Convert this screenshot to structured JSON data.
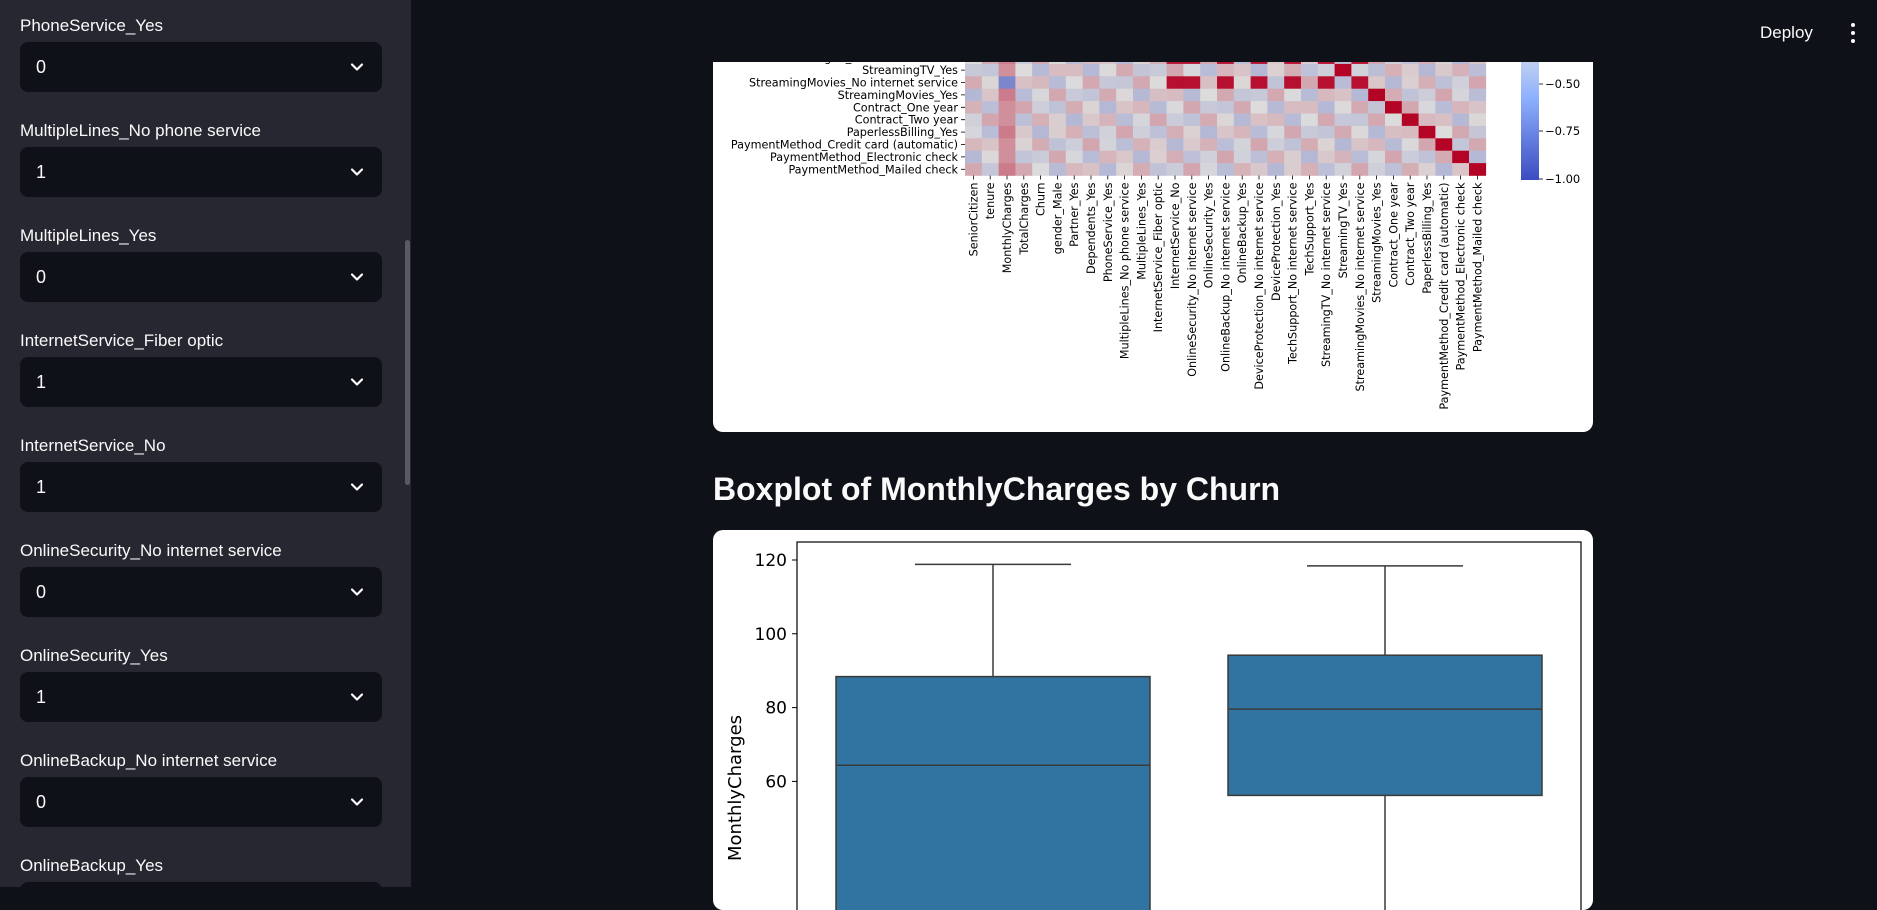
{
  "topbar": {
    "deploy_label": "Deploy",
    "menu_icon": "kebab-menu-icon"
  },
  "sidebar": {
    "fields": [
      {
        "label": "PhoneService_Yes",
        "value": "0"
      },
      {
        "label": "MultipleLines_No phone service",
        "value": "1"
      },
      {
        "label": "MultipleLines_Yes",
        "value": "0"
      },
      {
        "label": "InternetService_Fiber optic",
        "value": "1"
      },
      {
        "label": "InternetService_No",
        "value": "1"
      },
      {
        "label": "OnlineSecurity_No internet service",
        "value": "0"
      },
      {
        "label": "OnlineSecurity_Yes",
        "value": "1"
      },
      {
        "label": "OnlineBackup_No internet service",
        "value": "0"
      },
      {
        "label": "OnlineBackup_Yes",
        "value": ""
      }
    ]
  },
  "heatmap": {
    "row_labels": [
      "StreamingTV_No internet service",
      "StreamingTV_Yes",
      "StreamingMovies_No internet service",
      "StreamingMovies_Yes",
      "Contract_One year",
      "Contract_Two year",
      "PaperlessBilling_Yes",
      "PaymentMethod_Credit card (automatic)",
      "PaymentMethod_Electronic check",
      "PaymentMethod_Mailed check"
    ],
    "col_labels": [
      "SeniorCitizen",
      "tenure",
      "MonthlyCharges",
      "TotalCharges",
      "Churn",
      "gender_Male",
      "Partner_Yes",
      "Dependents_Yes",
      "PhoneService_Yes",
      "MultipleLines_No phone service",
      "MultipleLines_Yes",
      "InternetService_Fiber optic",
      "InternetService_No",
      "OnlineSecurity_No internet service",
      "OnlineSecurity_Yes",
      "OnlineBackup_No internet service",
      "OnlineBackup_Yes",
      "DeviceProtection_No internet service",
      "DeviceProtection_Yes",
      "TechSupport_No internet service",
      "TechSupport_Yes",
      "StreamingTV_No internet service",
      "StreamingTV_Yes",
      "StreamingMovies_No internet service",
      "StreamingMovies_Yes",
      "Contract_One year",
      "Contract_Two year",
      "PaperlessBilling_Yes",
      "PaymentMethod_Credit card (automatic)",
      "PaymentMethod_Electronic check",
      "PaymentMethod_Mailed check"
    ],
    "colorbar_ticks": [
      "−0.50",
      "−0.75",
      "−1.00"
    ],
    "colors": {
      "pos": "#b40426",
      "neg": "#3b4cc0",
      "neutral": "#dddcdc"
    }
  },
  "boxplot": {
    "title": "Boxplot of MonthlyCharges by Churn",
    "chart_data": {
      "type": "box",
      "ylabel": "MonthlyCharges",
      "yticks": [
        "120",
        "100",
        "80",
        "60"
      ],
      "ylim": [
        42,
        124
      ],
      "series": [
        {
          "whisker_high": 118.8,
          "q3": 88.4,
          "median": 64.4,
          "color": "#3274a1"
        },
        {
          "whisker_high": 118.4,
          "q3": 94.2,
          "median": 79.6,
          "q1": 56.2,
          "color": "#3274a1"
        }
      ]
    }
  }
}
